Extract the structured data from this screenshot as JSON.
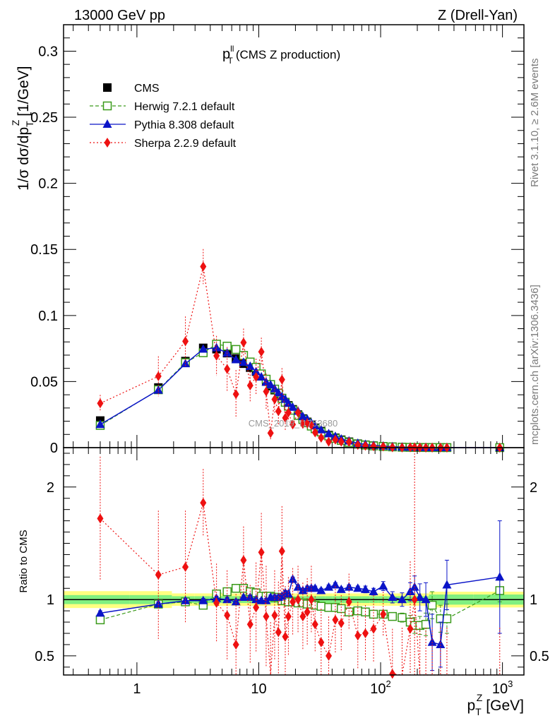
{
  "header": {
    "left": "13000 GeV pp",
    "right": "Z (Drell-Yan)"
  },
  "main": {
    "title_var": "p",
    "title_sup": "ll",
    "title_sub": "T",
    "title_rest": "(CMS Z production)",
    "ylabel": "1/σ dσ/dp",
    "ylabel_sub": "T",
    "ylabel_sup": "Z",
    "ylabel_unit": "[1/GeV]",
    "watermark": "CMS_2019_I1753680"
  },
  "ratio": {
    "ylabel": "Ratio to CMS"
  },
  "xaxis": {
    "label_var": "p",
    "label_sub": "T",
    "label_sup": "Z",
    "label_unit": "[GeV]"
  },
  "side": {
    "rivet": "Rivet 3.1.10, ≥ 2.6M events",
    "mcplots": "mcplots.cern.ch [arXiv:1306.3436]"
  },
  "legend": [
    {
      "key": "cms",
      "label": "CMS"
    },
    {
      "key": "herwig",
      "label": "Herwig 7.2.1 default"
    },
    {
      "key": "pythia",
      "label": "Pythia 8.308 default"
    },
    {
      "key": "sherpa",
      "label": "Sherpa 2.2.9 default"
    }
  ],
  "chart_data": {
    "type": "scatter",
    "x_scale": "log",
    "xlim": [
      0.25,
      1500
    ],
    "ylim": [
      0,
      0.32
    ],
    "ratio_ylim": [
      0.33,
      2.35
    ],
    "x_ticks": [
      {
        "v": 1,
        "label": "1"
      },
      {
        "v": 10,
        "label": "10"
      },
      {
        "v": 100,
        "label": "10",
        "sup": "2"
      },
      {
        "v": 1000,
        "label": "10",
        "sup": "3"
      }
    ],
    "y_ticks": [
      {
        "v": 0,
        "label": "0"
      },
      {
        "v": 0.05,
        "label": "0.05"
      },
      {
        "v": 0.1,
        "label": "0.1"
      },
      {
        "v": 0.15,
        "label": "0.15"
      },
      {
        "v": 0.2,
        "label": "0.2"
      },
      {
        "v": 0.25,
        "label": "0.25"
      },
      {
        "v": 0.3,
        "label": "0.3"
      }
    ],
    "ratio_ticks": [
      {
        "v": 0.5,
        "label": "0.5"
      },
      {
        "v": 1,
        "label": "1"
      },
      {
        "v": 2,
        "label": "2"
      }
    ],
    "x": [
      0.5,
      1.5,
      2.5,
      3.5,
      4.5,
      5.5,
      6.5,
      7.5,
      8.5,
      9.5,
      10.5,
      11.5,
      12.5,
      13.5,
      14.5,
      15.5,
      16.5,
      17.5,
      19,
      21,
      23,
      25,
      27,
      29,
      32.5,
      37.5,
      42.5,
      47.5,
      55,
      65,
      75,
      87.5,
      105,
      125,
      150,
      175,
      190,
      210,
      235,
      265,
      310,
      350,
      950
    ],
    "series": [
      {
        "name": "CMS",
        "values": [
          0.0205,
          0.0455,
          0.0655,
          0.0755,
          0.0745,
          0.0715,
          0.0675,
          0.0635,
          0.0605,
          0.0575,
          0.054,
          0.05,
          0.0465,
          0.0435,
          0.0405,
          0.0375,
          0.0345,
          0.032,
          0.029,
          0.025,
          0.022,
          0.0195,
          0.017,
          0.015,
          0.0125,
          0.0095,
          0.0075,
          0.006,
          0.0045,
          0.003,
          0.0022,
          0.0015,
          0.001,
          0.00065,
          0.0004,
          0.00028,
          0.00022,
          0.00016,
          0.00012,
          9e-05,
          6e-05,
          4e-05,
          5e-06
        ]
      },
      {
        "name": "Herwig 7.2.1 default",
        "values": [
          0.0168,
          0.0438,
          0.0643,
          0.0718,
          0.0783,
          0.0768,
          0.0743,
          0.0698,
          0.0648,
          0.0608,
          0.0558,
          0.0518,
          0.0478,
          0.0443,
          0.0413,
          0.0373,
          0.0343,
          0.0313,
          0.0283,
          0.0243,
          0.0213,
          0.0188,
          0.0163,
          0.0143,
          0.0118,
          0.0088,
          0.007,
          0.0055,
          0.004,
          0.0027,
          0.00195,
          0.0013,
          0.00087,
          0.00055,
          0.0003,
          0.00022,
          0.00017,
          0.000124,
          9e-05,
          7e-05,
          5e-05,
          3.3e-05,
          5.4e-06
        ],
        "ratio": [
          0.82,
          0.96,
          0.98,
          0.95,
          1.05,
          1.07,
          1.1,
          1.1,
          1.07,
          1.06,
          1.03,
          1.03,
          1.03,
          1.02,
          1.02,
          0.99,
          0.99,
          0.98,
          0.98,
          0.97,
          0.97,
          0.96,
          0.96,
          0.95,
          0.94,
          0.93,
          0.93,
          0.92,
          0.89,
          0.9,
          0.89,
          0.87,
          0.87,
          0.85,
          0.84,
          0.8,
          0.77,
          0.77,
          0.78,
          0.95,
          0.83,
          0.83,
          1.08
        ],
        "ratio_err": [
          0.02,
          0.02,
          0.02,
          0.02,
          0.02,
          0.02,
          0.02,
          0.02,
          0.02,
          0.02,
          0.02,
          0.02,
          0.02,
          0.02,
          0.02,
          0.02,
          0.02,
          0.02,
          0.02,
          0.02,
          0.02,
          0.02,
          0.02,
          0.02,
          0.02,
          0.02,
          0.02,
          0.02,
          0.02,
          0.02,
          0.02,
          0.02,
          0.02,
          0.03,
          0.04,
          0.06,
          0.07,
          0.08,
          0.1,
          0.12,
          0.12,
          0.13,
          0.1
        ]
      },
      {
        "name": "Pythia 8.308 default",
        "values": [
          0.0175,
          0.0435,
          0.0635,
          0.0745,
          0.0755,
          0.0715,
          0.0665,
          0.0645,
          0.0615,
          0.0575,
          0.0535,
          0.0495,
          0.0475,
          0.0445,
          0.0415,
          0.0385,
          0.0365,
          0.0335,
          0.0305,
          0.0275,
          0.0235,
          0.0215,
          0.0185,
          0.0165,
          0.0135,
          0.0105,
          0.0085,
          0.0065,
          0.005,
          0.0033,
          0.0024,
          0.0017,
          0.0012,
          0.00065,
          0.00042,
          0.00031,
          0.00024,
          0.00017,
          0.00013,
          8.2e-05,
          5e-05,
          4.5e-05,
          6e-06
        ],
        "ratio": [
          0.88,
          0.96,
          0.99,
          0.99,
          1.01,
          1.0,
          0.98,
          1.02,
          1.02,
          1.0,
          0.99,
          0.99,
          1.02,
          1.02,
          1.02,
          1.03,
          1.06,
          1.05,
          1.18,
          1.11,
          1.08,
          1.1,
          1.1,
          1.1,
          1.08,
          1.11,
          1.13,
          1.09,
          1.11,
          1.1,
          1.09,
          1.07,
          1.12,
          1.02,
          1.0,
          1.07,
          1.11,
          1.02,
          1.0,
          0.62,
          0.6,
          1.13,
          1.2
        ],
        "ratio_err": [
          0.02,
          0.02,
          0.02,
          0.02,
          0.02,
          0.02,
          0.02,
          0.02,
          0.02,
          0.02,
          0.02,
          0.02,
          0.02,
          0.02,
          0.02,
          0.02,
          0.02,
          0.02,
          0.02,
          0.02,
          0.02,
          0.02,
          0.02,
          0.02,
          0.02,
          0.02,
          0.02,
          0.02,
          0.02,
          0.02,
          0.03,
          0.03,
          0.04,
          0.05,
          0.06,
          0.08,
          0.1,
          0.12,
          0.15,
          0.25,
          0.2,
          0.22,
          0.5
        ]
      },
      {
        "name": "Sherpa 2.2.9 default",
        "values": [
          0.0335,
          0.054,
          0.0805,
          0.137,
          0.0695,
          0.0595,
          0.0405,
          0.0795,
          0.047,
          0.0535,
          0.0725,
          0.0425,
          0.011,
          0.0365,
          0.0275,
          0.0515,
          0.0225,
          0.0265,
          0.0175,
          0.0265,
          0.018,
          0.0185,
          0.017,
          0.0115,
          0.0075,
          0.0045,
          0.006,
          0.0045,
          0.0043,
          0.002,
          0.0014,
          0.001,
          0.00087,
          0.00022,
          0.0001,
          0.0002,
          0.0002,
          0.0001,
          1e-05,
          1e-05,
          1e-05,
          1e-05,
          1e-06
        ],
        "ratio": [
          1.72,
          1.22,
          1.29,
          1.86,
          0.97,
          0.86,
          0.6,
          1.35,
          0.78,
          0.93,
          1.42,
          0.85,
          0.3,
          0.86,
          0.71,
          1.43,
          0.67,
          0.85,
          0.98,
          1.0,
          0.85,
          0.89,
          1.0,
          0.78,
          0.62,
          0.5,
          0.82,
          0.79,
          0.98,
          0.68,
          0.7,
          0.74,
          0.87,
          0.34,
          0.25,
          0.74,
          1.0,
          0.25,
          0.25,
          0.25,
          0.25,
          0.25,
          0.25
        ],
        "ratio_err": [
          0.55,
          0.57,
          0.5,
          0.3,
          0.35,
          0.4,
          0.45,
          0.3,
          0.35,
          0.4,
          0.35,
          0.45,
          0.5,
          0.4,
          0.45,
          0.4,
          0.45,
          0.35,
          0.3,
          0.3,
          0.3,
          0.3,
          0.3,
          0.25,
          0.3,
          0.35,
          0.3,
          0.25,
          0.25,
          0.3,
          0.25,
          0.3,
          0.2,
          0.4,
          0.5,
          0.6,
          1.5,
          0.5,
          0.5,
          0.5,
          0.5,
          0.5,
          0.5
        ]
      }
    ]
  },
  "colors": {
    "cms": "#000000",
    "herwig": "#3a9a1a",
    "pythia": "#0a14c8",
    "sherpa": "#ee1111",
    "band_outer": "#ffff80",
    "band_inner": "#80f080"
  }
}
